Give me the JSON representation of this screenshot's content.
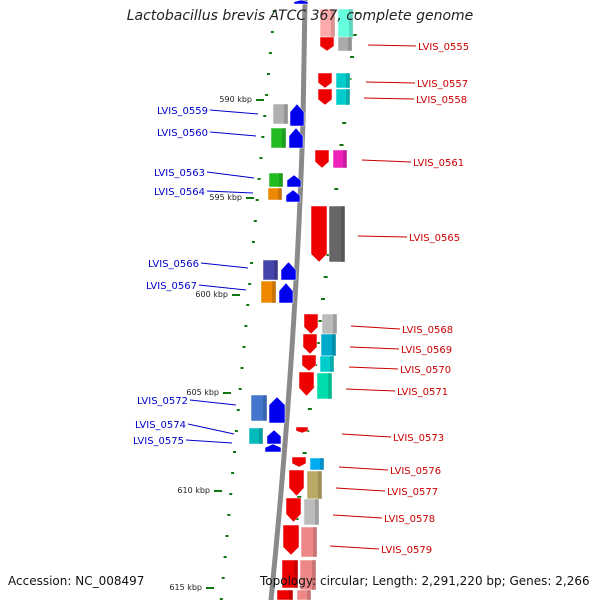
{
  "title": "Lactobacillus brevis ATCC 367, complete genome",
  "footer": {
    "accession": "Accession: NC_008497",
    "topology": "Topology: circular; Length: 2,291,220 bp; Genes: 2,266"
  },
  "colors": {
    "left_label": "#0000cc",
    "right_label": "#cc0000",
    "backbone": "#888888",
    "tick": "#117711"
  },
  "ticks": [
    "590 kbp",
    "595 kbp",
    "600 kbp",
    "605 kbp",
    "610 kbp",
    "615 kbp"
  ],
  "left_genes": [
    "LVIS_0559",
    "LVIS_0560",
    "LVIS_0563",
    "LVIS_0564",
    "LVIS_0566",
    "LVIS_0567",
    "LVIS_0572",
    "LVIS_0574",
    "LVIS_0575"
  ],
  "right_genes": [
    "LVIS_0555",
    "LVIS_0557",
    "LVIS_0558",
    "LVIS_0561",
    "LVIS_0565",
    "LVIS_0568",
    "LVIS_0569",
    "LVIS_0570",
    "LVIS_0571",
    "LVIS_0573",
    "LVIS_0576",
    "LVIS_0577",
    "LVIS_0578",
    "LVIS_0579"
  ]
}
